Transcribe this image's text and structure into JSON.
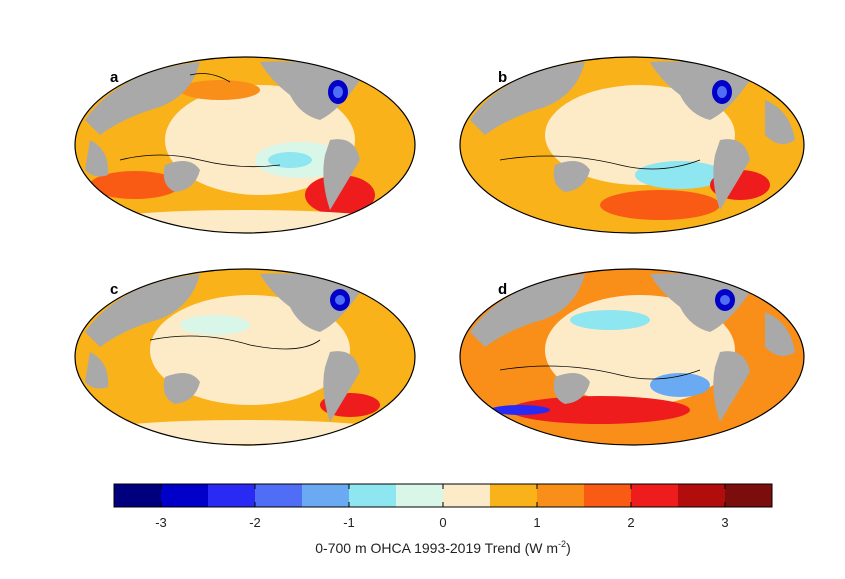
{
  "panels": [
    {
      "label": "a"
    },
    {
      "label": "b"
    },
    {
      "label": "c"
    },
    {
      "label": "d"
    }
  ],
  "colorbar": {
    "title_main": "0-700 m OHCA 1993-2019 Trend (W m",
    "title_sup": "-2",
    "title_end": ")",
    "min": -3.5,
    "max": 3.5,
    "step": 0.5,
    "ticks": [
      -3,
      -2,
      -1,
      0,
      1,
      2,
      3
    ],
    "tick_labels": [
      "-3",
      "-2",
      "-1",
      "0",
      "1",
      "2",
      "3"
    ],
    "colors": [
      "#00007f",
      "#0000c8",
      "#2a2af5",
      "#4f6ef5",
      "#6aaaf2",
      "#8ee6f0",
      "#d9f7e8",
      "#fdebc8",
      "#f9b21a",
      "#f98f19",
      "#f95b14",
      "#ee1c1c",
      "#b10d0d",
      "#7c0d0d"
    ]
  },
  "colors": {
    "land": "#a9a9a9",
    "coast": "#000000"
  }
}
